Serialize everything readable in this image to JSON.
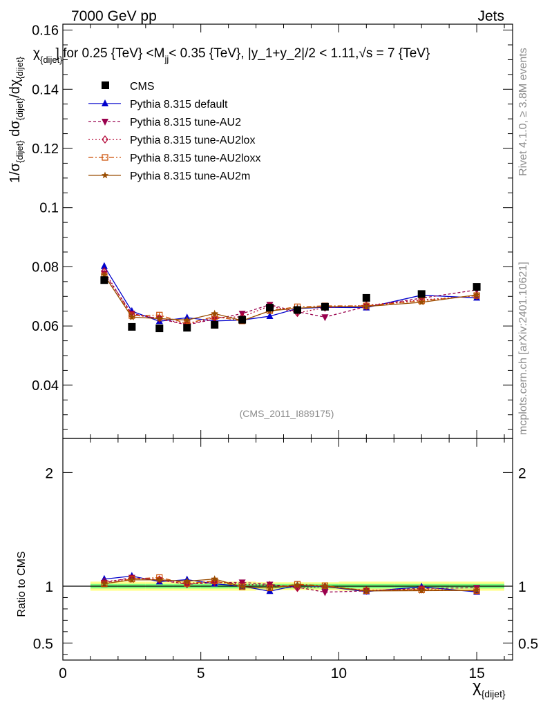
{
  "header": {
    "left": "7000 GeV pp",
    "right": "Jets"
  },
  "side": {
    "rivet": "Rivet 4.1.0, ≥ 3.8M events",
    "mcplots": "mcplots.cern.ch [arXiv:2401.10621]"
  },
  "colors": {
    "cms": "#000000",
    "default": "#0000cc",
    "au2": "#99004d",
    "au2lox": "#b20032",
    "au2loxx": "#cc4c00",
    "au2m": "#994c00",
    "band_inner": "#7cfc7c",
    "band_outer": "#ffff8c"
  },
  "chart_data": {
    "type": "line",
    "title": "χ_{dijet} for 0.25 {TeV} < M_jj < 0.35 {TeV}, |y_1+y_2|/2 < 1.11, √s = 7 {TeV}",
    "title_parts": {
      "chi": "χ",
      "chi_sub": "{dijet}",
      "close": "]",
      "mid": " for 0.25 {TeV} <M",
      "m_sub": "jj",
      "tail": "< 0.35 {TeV}, |y_1+y_2|/2 < 1.11,",
      "sqrt": "√s",
      "end": " = 7 {TeV}"
    },
    "ylabel_main": "1/σ_{dijet} dσ_{dijet}/dχ_{dijet}",
    "ylabel_ratio": "Ratio to CMS",
    "xlabel": "χ_{dijet}",
    "xlim": [
      0,
      16.3
    ],
    "ylim_main": [
      0.022,
      0.162
    ],
    "ylim_ratio": [
      0.35,
      2.3
    ],
    "yticks_main": [
      0.04,
      0.06,
      0.08,
      0.1,
      0.12,
      0.14,
      0.16
    ],
    "ytick_labels_main": [
      "0.04",
      "0.06",
      "0.08",
      "0.1",
      "0.12",
      "0.14",
      "0.16"
    ],
    "yticks_ratio": [
      0.5,
      1,
      2
    ],
    "ytick_labels_ratio": [
      "0.5",
      "1",
      "2"
    ],
    "xticks": [
      0,
      5,
      10,
      15
    ],
    "xtick_labels": [
      "0",
      "5",
      "10",
      "15"
    ],
    "watermark": "(CMS_2011_I889175)",
    "x": [
      1.5,
      2.5,
      3.5,
      4.5,
      5.5,
      6.5,
      7.5,
      8.5,
      9.5,
      11,
      13,
      15
    ],
    "band_edges": [
      1,
      2,
      3,
      4,
      5,
      6,
      7,
      8,
      9,
      10,
      12,
      14,
      16
    ],
    "band_inner": [
      0.02,
      0.02,
      0.02,
      0.02,
      0.02,
      0.02,
      0.02,
      0.02,
      0.02,
      0.02,
      0.02,
      0.02
    ],
    "band_outer": [
      0.04,
      0.04,
      0.04,
      0.04,
      0.04,
      0.04,
      0.035,
      0.035,
      0.035,
      0.04,
      0.04,
      0.04
    ],
    "data": {
      "name": "CMS",
      "values": [
        0.0755,
        0.0597,
        0.0592,
        0.0594,
        0.0604,
        0.0621,
        0.0662,
        0.0654,
        0.0665,
        0.0695,
        0.0708,
        0.0732
      ]
    },
    "series": [
      {
        "key": "default",
        "name": "Pythia 8.315 default",
        "marker": "triangle-up",
        "dash": "",
        "values": [
          0.0802,
          0.065,
          0.0616,
          0.0628,
          0.0617,
          0.062,
          0.0633,
          0.0659,
          0.0663,
          0.0662,
          0.0704,
          0.0695
        ],
        "err": [
          0.001,
          0.0008,
          0.0008,
          0.0008,
          0.0008,
          0.0008,
          0.0007,
          0.0007,
          0.0007,
          0.0006,
          0.0006,
          0.0006
        ]
      },
      {
        "key": "au2",
        "name": "Pythia 8.315 tune-AU2",
        "marker": "triangle-down",
        "dash": "4,3",
        "values": [
          0.0778,
          0.0642,
          0.0624,
          0.0604,
          0.0623,
          0.0642,
          0.0672,
          0.0648,
          0.063,
          0.0666,
          0.0694,
          0.0722
        ],
        "err": [
          0.001,
          0.0008,
          0.0008,
          0.0008,
          0.0008,
          0.0008,
          0.0007,
          0.0007,
          0.0007,
          0.0006,
          0.0006,
          0.0006
        ]
      },
      {
        "key": "au2lox",
        "name": "Pythia 8.315 tune-AU2lox",
        "marker": "diamond-open",
        "dash": "2,3",
        "values": [
          0.0785,
          0.0637,
          0.0627,
          0.0605,
          0.0628,
          0.0631,
          0.0668,
          0.0644,
          0.0662,
          0.067,
          0.0688,
          0.0702
        ],
        "err": [
          0.001,
          0.0008,
          0.0008,
          0.0008,
          0.0008,
          0.0008,
          0.0007,
          0.0007,
          0.0007,
          0.0006,
          0.0006,
          0.0006
        ]
      },
      {
        "key": "au2loxx",
        "name": "Pythia 8.315 tune-AU2loxx",
        "marker": "square-open",
        "dash": "7,3,2,3",
        "values": [
          0.077,
          0.0635,
          0.0637,
          0.0608,
          0.0632,
          0.0617,
          0.0652,
          0.0665,
          0.0668,
          0.0668,
          0.0685,
          0.0703
        ],
        "err": [
          0.001,
          0.0008,
          0.0008,
          0.0008,
          0.0008,
          0.0008,
          0.0007,
          0.0007,
          0.0007,
          0.0006,
          0.0006,
          0.0006
        ]
      },
      {
        "key": "au2m",
        "name": "Pythia 8.315 tune-AU2m",
        "marker": "star",
        "dash": "",
        "values": [
          0.0772,
          0.063,
          0.0625,
          0.062,
          0.0642,
          0.0618,
          0.0651,
          0.066,
          0.0665,
          0.0666,
          0.068,
          0.0705
        ],
        "err": [
          0.001,
          0.0008,
          0.0008,
          0.0008,
          0.0008,
          0.0008,
          0.0007,
          0.0007,
          0.0007,
          0.0006,
          0.0006,
          0.0006
        ]
      }
    ]
  }
}
